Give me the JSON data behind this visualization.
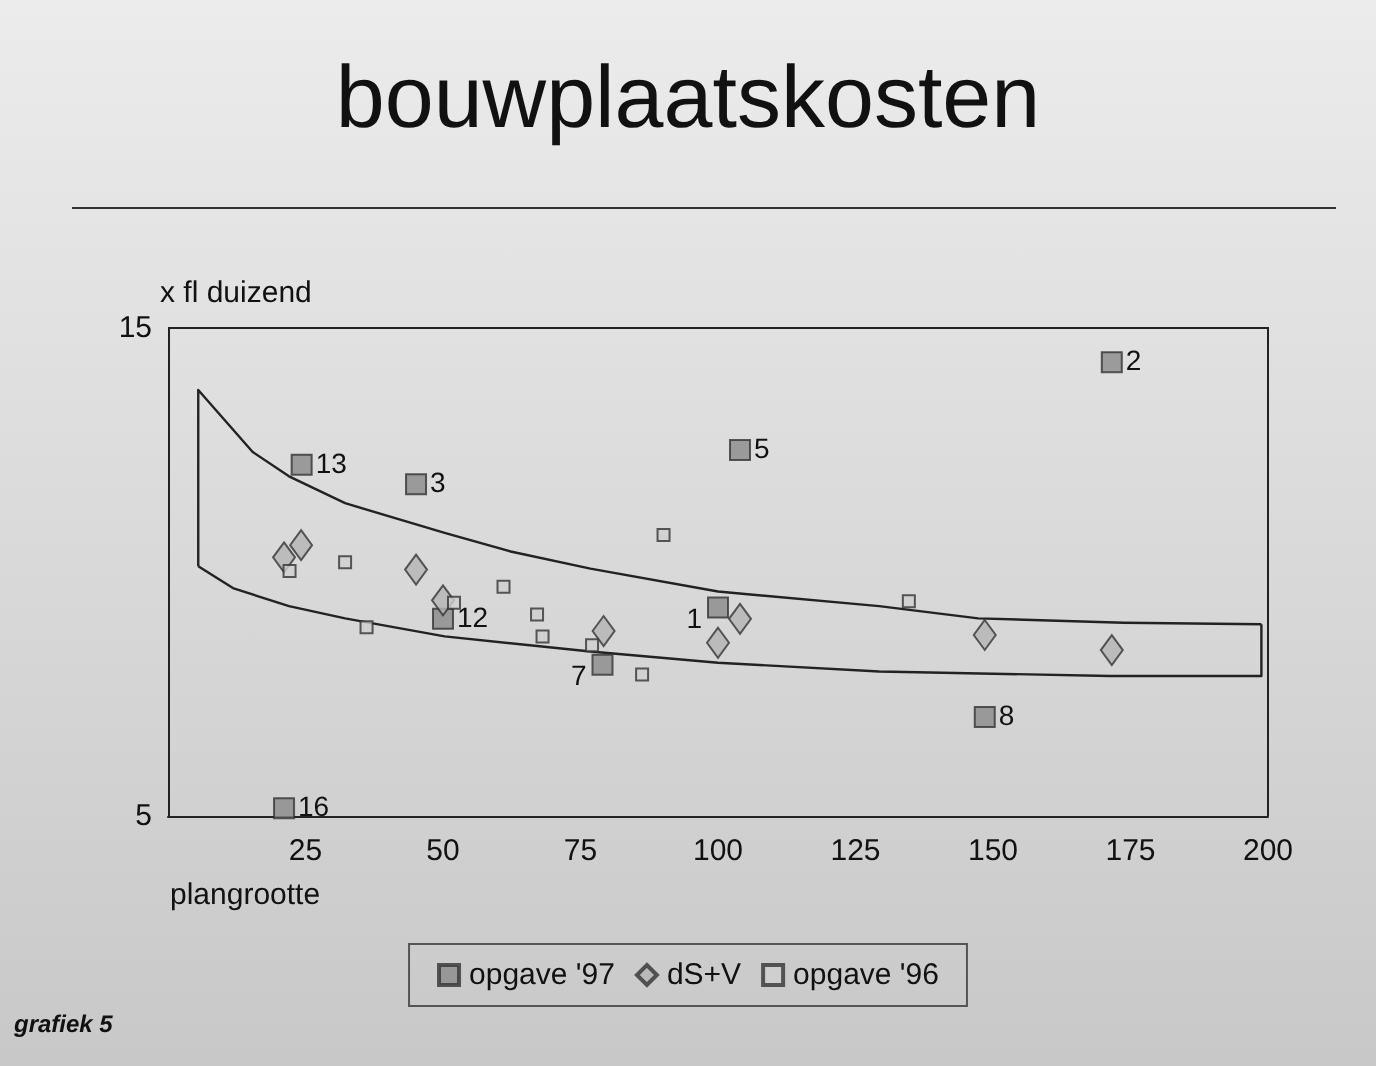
{
  "chart_data": {
    "type": "scatter",
    "title": "bouwplaatskosten",
    "ylabel": "x fl duizend",
    "xlabel": "plangrootte",
    "xlim": [
      0,
      200
    ],
    "xticks": [
      25,
      50,
      75,
      100,
      125,
      150,
      175,
      200
    ],
    "ylim": [
      5,
      15
    ],
    "yticks": [
      5,
      15
    ],
    "grid": false,
    "legend": "bottom",
    "series": [
      {
        "name": "opgave '97",
        "color": "#8a8a8a",
        "marker": "square",
        "x": [
          24.3,
          45.1,
          50.0,
          79.0,
          100,
          104,
          21.1,
          171.6,
          148.5
        ],
        "values": [
          12.2,
          11.8,
          9.04,
          8.1,
          9.27,
          12.5,
          5.16,
          14.3,
          7.03
        ]
      },
      {
        "name": "dS+V",
        "color": "#b4b4b4",
        "marker": "diamond",
        "x": [
          21.1,
          24.2,
          45.1,
          50,
          79.2,
          100,
          104,
          148.5,
          171.6
        ],
        "values": [
          10.3,
          10.55,
          10.05,
          9.42,
          8.79,
          8.55,
          9.04,
          8.71,
          8.4
        ]
      },
      {
        "name": "opgave '96",
        "color": "#cfcfcf",
        "marker": "square",
        "x": [
          22.1,
          32.2,
          36.1,
          52,
          61,
          67.1,
          68.1,
          77.1,
          86.2,
          90.1,
          134.7
        ],
        "values": [
          10.02,
          10.2,
          8.87,
          9.37,
          9.7,
          9.13,
          8.68,
          8.5,
          7.9,
          10.76,
          9.4
        ]
      },
      {
        "type": "line",
        "color": "#222222",
        "marker": "none",
        "x": [
          5.5,
          5.5,
          15.4,
          22,
          32.2,
          50.3,
          62.3,
          76.8,
          100,
          129.3,
          147.3,
          173.7,
          198.8
        ],
        "values": [
          10.12,
          13.73,
          12.46,
          11.96,
          11.41,
          10.8,
          10.42,
          10.07,
          9.6,
          9.3,
          9.05,
          8.96,
          8.93
        ]
      },
      {
        "type": "line",
        "color": "#222222",
        "marker": "none",
        "x": [
          5.5,
          11.8,
          22,
          32.2,
          50.3,
          76.8,
          100,
          129.3,
          171.3,
          198.8,
          198.8
        ],
        "values": [
          10.12,
          9.67,
          9.3,
          9.05,
          8.68,
          8.37,
          8.14,
          7.96,
          7.87,
          7.87,
          8.93
        ]
      }
    ],
    "annotations": [
      {
        "text": "13",
        "x": 24.3,
        "y": 12.2
      },
      {
        "text": "3",
        "x": 45.1,
        "y": 11.8
      },
      {
        "text": "12",
        "x": 50.0,
        "y": 9.04
      },
      {
        "text": "7",
        "x": 79.0,
        "y": 8.1
      },
      {
        "text": "1",
        "x": 100,
        "y": 9.27
      },
      {
        "text": "5",
        "x": 104,
        "y": 12.5
      },
      {
        "text": "16",
        "x": 21.1,
        "y": 5.16
      },
      {
        "text": "2",
        "x": 171.6,
        "y": 14.3
      },
      {
        "text": "8",
        "x": 148.5,
        "y": 7.03
      },
      "grafiek 5"
    ]
  }
}
